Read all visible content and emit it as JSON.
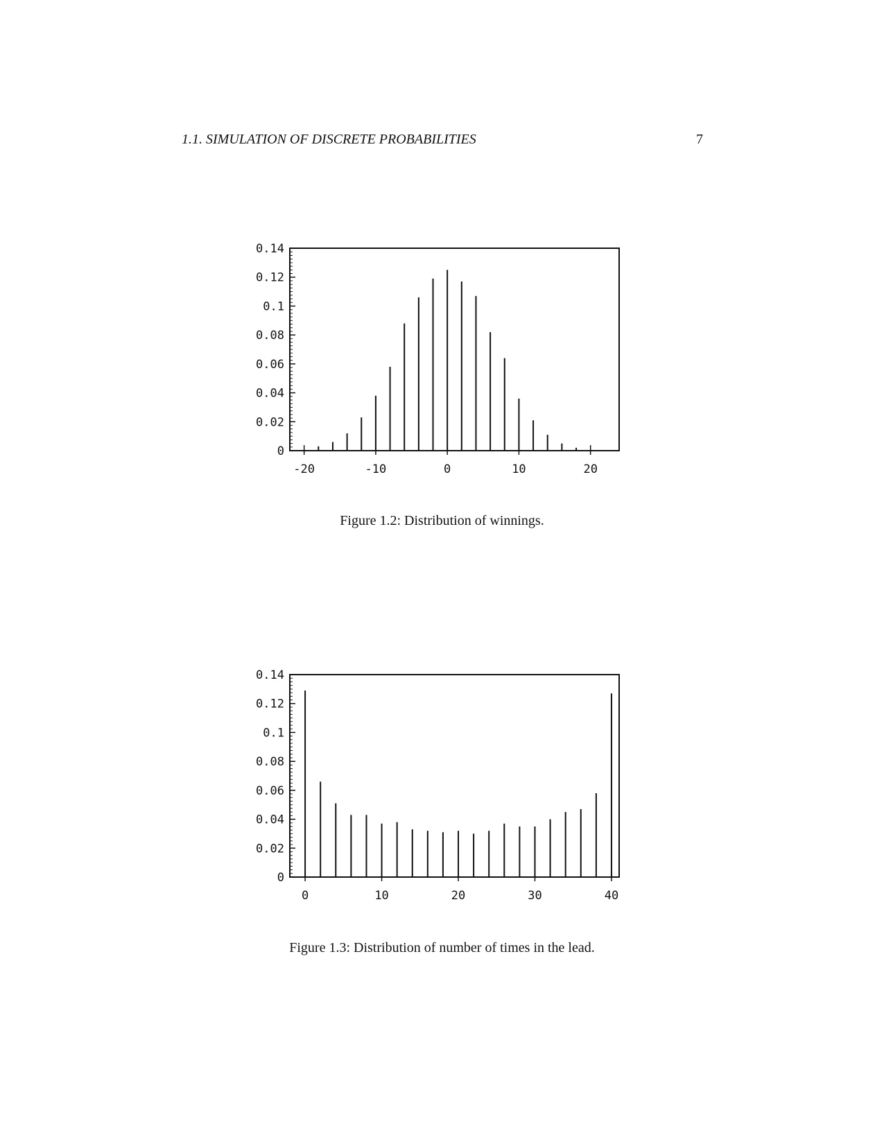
{
  "header": {
    "section_title": "1.1.  SIMULATION OF DISCRETE PROBABILITIES",
    "page_number": "7"
  },
  "figures": [
    {
      "caption": "Figure 1.2: Distribution of winnings."
    },
    {
      "caption": "Figure 1.3: Distribution of number of times in the lead."
    }
  ],
  "chart_data": [
    {
      "type": "bar",
      "title": "",
      "xlabel": "",
      "ylabel": "",
      "xlim": [
        -22,
        24
      ],
      "ylim": [
        0,
        0.14
      ],
      "x_ticks": [
        -20,
        -10,
        0,
        10,
        20
      ],
      "x_tick_labels": [
        "-20",
        "-10",
        "0",
        "10",
        "20"
      ],
      "y_ticks": [
        0,
        0.02,
        0.04,
        0.06,
        0.08,
        0.1,
        0.12,
        0.14
      ],
      "y_tick_labels": [
        "0",
        "0.02",
        "0.04",
        "0.06",
        "0.08",
        "0.1",
        "0.12",
        "0.14"
      ],
      "grid": false,
      "x": [
        -20,
        -18,
        -16,
        -14,
        -12,
        -10,
        -8,
        -6,
        -4,
        -2,
        0,
        2,
        4,
        6,
        8,
        10,
        12,
        14,
        16,
        18,
        20
      ],
      "values": [
        0.0005,
        0.003,
        0.006,
        0.012,
        0.023,
        0.038,
        0.058,
        0.088,
        0.106,
        0.119,
        0.125,
        0.117,
        0.107,
        0.082,
        0.064,
        0.036,
        0.021,
        0.011,
        0.005,
        0.002,
        0.0005
      ]
    },
    {
      "type": "bar",
      "title": "",
      "xlabel": "",
      "ylabel": "",
      "xlim": [
        -2,
        41
      ],
      "ylim": [
        0,
        0.14
      ],
      "x_ticks": [
        0,
        10,
        20,
        30,
        40
      ],
      "x_tick_labels": [
        "0",
        "10",
        "20",
        "30",
        "40"
      ],
      "y_ticks": [
        0,
        0.02,
        0.04,
        0.06,
        0.08,
        0.1,
        0.12,
        0.14
      ],
      "y_tick_labels": [
        "0",
        "0.02",
        "0.04",
        "0.06",
        "0.08",
        "0.1",
        "0.12",
        "0.14"
      ],
      "grid": false,
      "x": [
        0,
        2,
        4,
        6,
        8,
        10,
        12,
        14,
        16,
        18,
        20,
        22,
        24,
        26,
        28,
        30,
        32,
        34,
        36,
        38,
        40
      ],
      "values": [
        0.129,
        0.066,
        0.051,
        0.043,
        0.043,
        0.037,
        0.038,
        0.033,
        0.032,
        0.031,
        0.032,
        0.03,
        0.032,
        0.037,
        0.035,
        0.035,
        0.04,
        0.045,
        0.047,
        0.058,
        0.127
      ]
    }
  ]
}
